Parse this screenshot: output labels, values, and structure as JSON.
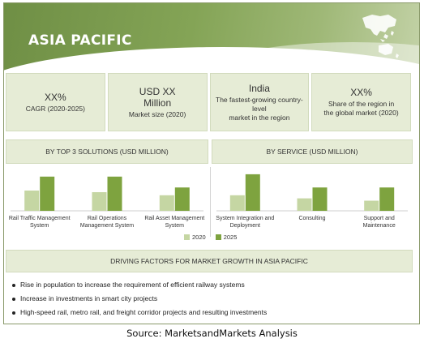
{
  "banner": {
    "title": "ASIA PACIFIC",
    "map_icon": "asia-pacific-map-icon"
  },
  "stats": [
    {
      "value": "XX%",
      "label": "CAGR (2020-2025)"
    },
    {
      "value_line1": "USD XX",
      "value_line2": "Million",
      "label": "Market size (2020)"
    },
    {
      "value": "India",
      "label_line1": "The fastest-growing country-level",
      "label_line2": "market in the region"
    },
    {
      "value": "XX%",
      "label_line1": "Share of the region in",
      "label_line2": "the global market (2020)"
    }
  ],
  "colors": {
    "bar_2020": "#c5d6a3",
    "bar_2025": "#7ea33f",
    "panel": "#e6ecd6",
    "banner": "#7d9c4f"
  },
  "chart_data": [
    {
      "type": "bar",
      "title": "BY TOP 3 SOLUTIONS (USD MILLION)",
      "categories": [
        [
          "Rail Traffic Management",
          "System"
        ],
        [
          "Rail Operations",
          "Management System"
        ],
        [
          "Rail Asset Management",
          "System"
        ]
      ],
      "series": [
        {
          "name": "2020",
          "values": [
            26,
            24,
            20
          ]
        },
        {
          "name": "2025",
          "values": [
            44,
            44,
            30
          ]
        }
      ],
      "ylim": [
        0,
        50
      ],
      "grid": false,
      "axis_values_shown": false
    },
    {
      "type": "bar",
      "title": "BY SERVICE (USD MILLION)",
      "categories": [
        [
          "System Integration and",
          "Deployment"
        ],
        [
          "Consulting"
        ],
        [
          "Support and",
          "Maintenance"
        ]
      ],
      "series": [
        {
          "name": "2020",
          "values": [
            20,
            16,
            13
          ]
        },
        {
          "name": "2025",
          "values": [
            47,
            30,
            30
          ]
        }
      ],
      "ylim": [
        0,
        50
      ],
      "grid": false,
      "axis_values_shown": false
    }
  ],
  "legend": {
    "labels": [
      "2020",
      "2025"
    ],
    "placement": "bottom-center"
  },
  "drivers": {
    "title": "DRIVING FACTORS FOR MARKET GROWTH IN ASIA PACIFIC",
    "items": [
      "Rise in population to increase the requirement of efficient railway systems",
      "Increase in investments in smart city projects",
      "High-speed rail, metro rail,  and  freight corridor projects and resulting investments"
    ]
  },
  "source": "Source: MarketsandMarkets Analysis"
}
